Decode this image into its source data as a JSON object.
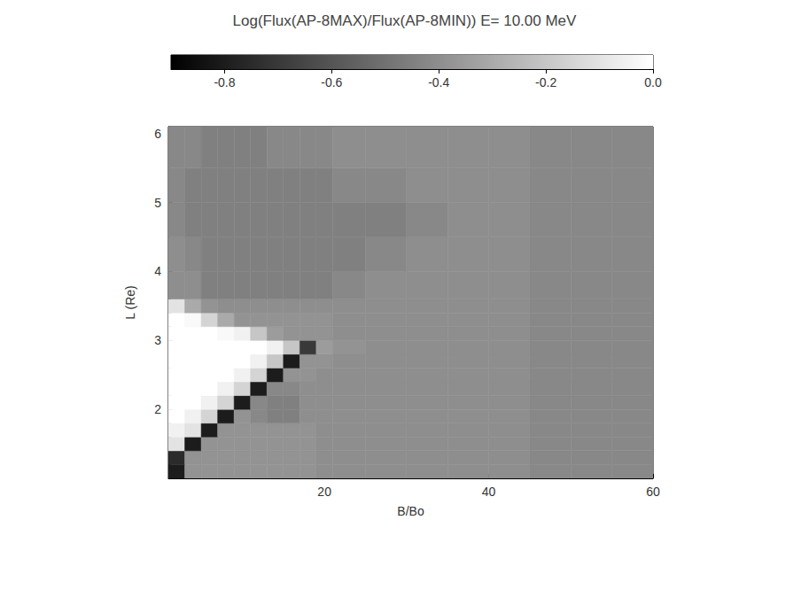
{
  "chart_data": {
    "type": "heatmap",
    "title": "Log(Flux(AP-8MAX)/Flux(AP-8MIN)) E= 10.00 MeV",
    "x_label": "B/Bo",
    "y_label": "L (Re)",
    "xlim": [
      1,
      60
    ],
    "xticks": [
      20,
      40,
      60
    ],
    "ylim": [
      1,
      6.1
    ],
    "yticks": [
      2,
      3,
      4,
      5,
      6
    ],
    "x_bins": [
      1,
      3,
      5,
      7,
      9,
      11,
      13,
      15,
      17,
      19,
      21,
      25,
      30,
      35,
      40,
      45,
      50,
      55,
      60
    ],
    "y_bins": [
      1.0,
      1.2,
      1.4,
      1.6,
      1.8,
      2.0,
      2.2,
      2.4,
      2.6,
      2.8,
      3.0,
      3.2,
      3.4,
      3.6,
      4.0,
      4.5,
      5.0,
      5.5,
      6.1
    ],
    "z": [
      [
        -0.8,
        -0.38,
        -0.38,
        -0.38,
        -0.38,
        -0.38,
        -0.38,
        -0.38,
        -0.38,
        -0.4,
        -0.4,
        -0.4,
        -0.4,
        -0.4,
        -0.4,
        -0.42,
        -0.42,
        -0.42
      ],
      [
        -0.75,
        -0.38,
        -0.38,
        -0.38,
        -0.38,
        -0.38,
        -0.38,
        -0.38,
        -0.38,
        -0.4,
        -0.4,
        -0.4,
        -0.4,
        -0.4,
        -0.4,
        -0.42,
        -0.42,
        -0.42
      ],
      [
        -0.1,
        -0.8,
        -0.38,
        -0.38,
        -0.38,
        -0.38,
        -0.38,
        -0.38,
        -0.38,
        -0.4,
        -0.4,
        -0.4,
        -0.4,
        -0.4,
        -0.4,
        -0.42,
        -0.42,
        -0.42
      ],
      [
        -0.05,
        -0.1,
        -0.8,
        -0.38,
        -0.38,
        -0.38,
        -0.38,
        -0.38,
        -0.38,
        -0.4,
        -0.4,
        -0.4,
        -0.4,
        -0.4,
        -0.4,
        -0.42,
        -0.42,
        -0.42
      ],
      [
        0,
        -0.05,
        -0.15,
        -0.8,
        -0.38,
        -0.42,
        -0.45,
        -0.45,
        -0.4,
        -0.4,
        -0.4,
        -0.4,
        -0.4,
        -0.4,
        -0.4,
        -0.42,
        -0.42,
        -0.42
      ],
      [
        0,
        0,
        -0.05,
        -0.15,
        -0.8,
        -0.42,
        -0.45,
        -0.45,
        -0.4,
        -0.4,
        -0.4,
        -0.4,
        -0.4,
        -0.4,
        -0.4,
        -0.42,
        -0.42,
        -0.42
      ],
      [
        0,
        0,
        0,
        -0.05,
        -0.15,
        -0.8,
        -0.42,
        -0.42,
        -0.4,
        -0.4,
        -0.4,
        -0.4,
        -0.4,
        -0.4,
        -0.4,
        -0.42,
        -0.42,
        -0.42
      ],
      [
        0,
        0,
        0,
        0,
        -0.05,
        -0.15,
        -0.8,
        -0.38,
        -0.38,
        -0.4,
        -0.4,
        -0.4,
        -0.4,
        -0.4,
        -0.4,
        -0.42,
        -0.42,
        -0.42
      ],
      [
        0,
        0,
        0,
        0,
        0,
        -0.05,
        -0.2,
        -0.8,
        -0.38,
        -0.38,
        -0.4,
        -0.4,
        -0.4,
        -0.4,
        -0.4,
        -0.42,
        -0.42,
        -0.42
      ],
      [
        0,
        0,
        0,
        0,
        0,
        0,
        -0.05,
        -0.2,
        -0.7,
        -0.35,
        -0.38,
        -0.4,
        -0.4,
        -0.4,
        -0.4,
        -0.42,
        -0.42,
        -0.42
      ],
      [
        0,
        0,
        0,
        -0.02,
        -0.05,
        -0.2,
        -0.35,
        -0.38,
        -0.38,
        -0.38,
        -0.4,
        -0.4,
        -0.4,
        -0.4,
        -0.4,
        -0.42,
        -0.42,
        -0.42
      ],
      [
        0,
        -0.02,
        -0.15,
        -0.3,
        -0.38,
        -0.38,
        -0.38,
        -0.38,
        -0.38,
        -0.38,
        -0.4,
        -0.4,
        -0.4,
        -0.4,
        -0.4,
        -0.42,
        -0.42,
        -0.42
      ],
      [
        -0.1,
        -0.3,
        -0.38,
        -0.4,
        -0.4,
        -0.4,
        -0.4,
        -0.4,
        -0.4,
        -0.4,
        -0.4,
        -0.4,
        -0.4,
        -0.4,
        -0.4,
        -0.42,
        -0.42,
        -0.42
      ],
      [
        -0.4,
        -0.4,
        -0.45,
        -0.45,
        -0.45,
        -0.45,
        -0.45,
        -0.45,
        -0.45,
        -0.45,
        -0.42,
        -0.4,
        -0.4,
        -0.4,
        -0.4,
        -0.42,
        -0.42,
        -0.42
      ],
      [
        -0.4,
        -0.42,
        -0.45,
        -0.45,
        -0.45,
        -0.45,
        -0.45,
        -0.45,
        -0.45,
        -0.45,
        -0.45,
        -0.42,
        -0.4,
        -0.4,
        -0.4,
        -0.42,
        -0.42,
        -0.42
      ],
      [
        -0.42,
        -0.45,
        -0.45,
        -0.45,
        -0.45,
        -0.45,
        -0.45,
        -0.45,
        -0.45,
        -0.45,
        -0.45,
        -0.45,
        -0.42,
        -0.4,
        -0.4,
        -0.42,
        -0.42,
        -0.42
      ],
      [
        -0.42,
        -0.45,
        -0.45,
        -0.45,
        -0.45,
        -0.45,
        -0.45,
        -0.45,
        -0.45,
        -0.45,
        -0.42,
        -0.42,
        -0.4,
        -0.4,
        -0.4,
        -0.42,
        -0.42,
        -0.42
      ],
      [
        -0.42,
        -0.42,
        -0.45,
        -0.45,
        -0.45,
        -0.45,
        -0.42,
        -0.42,
        -0.42,
        -0.42,
        -0.4,
        -0.4,
        -0.4,
        -0.4,
        -0.4,
        -0.42,
        -0.42,
        -0.42
      ]
    ],
    "zlim": [
      -0.9,
      0
    ],
    "zticks": [
      -0.8,
      -0.6,
      -0.4,
      -0.2,
      {
        "value": 0,
        "label": "0.0"
      }
    ],
    "grid": false
  }
}
